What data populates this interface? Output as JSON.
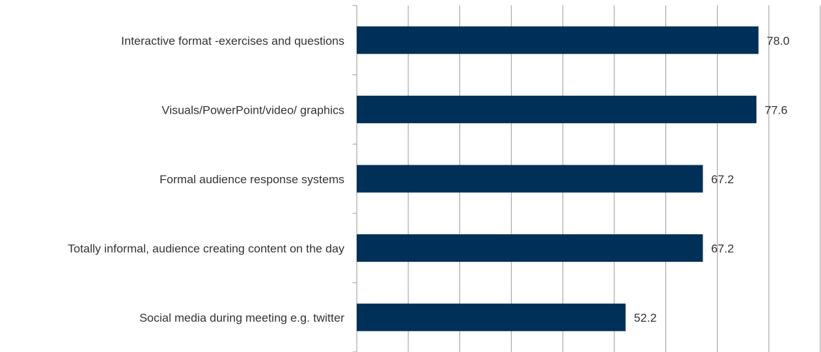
{
  "chart_data": {
    "type": "hbar",
    "categories": [
      "Interactive format -exercises and questions",
      "Visuals/PowerPoint/video/ graphics",
      "Formal audience response systems",
      "Totally informal, audience creating content on the day",
      "Social media during meeting e.g. twitter"
    ],
    "values": [
      78,
      77.6,
      67.2,
      67.2,
      52.2
    ],
    "value_labels": [
      "78.0",
      "77.6",
      "67.2",
      "67.2",
      "52.2"
    ],
    "color": "#003057",
    "xlim": [
      0,
      90
    ],
    "xticks": [
      0,
      10,
      20,
      30,
      40,
      50,
      60,
      70,
      80,
      90
    ],
    "grid": true
  }
}
